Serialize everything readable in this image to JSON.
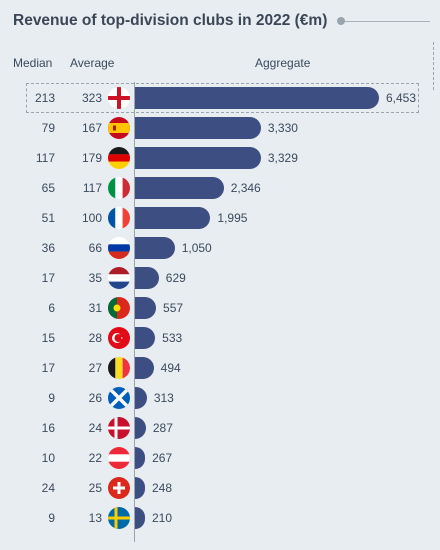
{
  "chart_data": {
    "type": "bar",
    "title": "Revenue of top-division clubs in 2022 (€m)",
    "columns": {
      "median": "Median",
      "average": "Average",
      "aggregate": "Aggregate"
    },
    "rows": [
      {
        "flag": "england",
        "median": "213",
        "average": "323",
        "aggregate": 6453,
        "aggregate_label": "6,453"
      },
      {
        "flag": "spain",
        "median": "79",
        "average": "167",
        "aggregate": 3330,
        "aggregate_label": "3,330"
      },
      {
        "flag": "germany",
        "median": "117",
        "average": "179",
        "aggregate": 3329,
        "aggregate_label": "3,329"
      },
      {
        "flag": "italy",
        "median": "65",
        "average": "117",
        "aggregate": 2346,
        "aggregate_label": "2,346"
      },
      {
        "flag": "france",
        "median": "51",
        "average": "100",
        "aggregate": 1995,
        "aggregate_label": "1,995"
      },
      {
        "flag": "russia",
        "median": "36",
        "average": "66",
        "aggregate": 1050,
        "aggregate_label": "1,050"
      },
      {
        "flag": "netherlands",
        "median": "17",
        "average": "35",
        "aggregate": 629,
        "aggregate_label": "629"
      },
      {
        "flag": "portugal",
        "median": "6",
        "average": "31",
        "aggregate": 557,
        "aggregate_label": "557"
      },
      {
        "flag": "turkey",
        "median": "15",
        "average": "28",
        "aggregate": 533,
        "aggregate_label": "533"
      },
      {
        "flag": "belgium",
        "median": "17",
        "average": "27",
        "aggregate": 494,
        "aggregate_label": "494"
      },
      {
        "flag": "scotland",
        "median": "9",
        "average": "26",
        "aggregate": 313,
        "aggregate_label": "313"
      },
      {
        "flag": "denmark",
        "median": "16",
        "average": "24",
        "aggregate": 287,
        "aggregate_label": "287"
      },
      {
        "flag": "austria",
        "median": "10",
        "average": "22",
        "aggregate": 267,
        "aggregate_label": "267"
      },
      {
        "flag": "switzerland",
        "median": "24",
        "average": "25",
        "aggregate": 248,
        "aggregate_label": "248"
      },
      {
        "flag": "sweden",
        "median": "9",
        "average": "13",
        "aggregate": 210,
        "aggregate_label": "210"
      }
    ],
    "bar_color": "#3d4f82"
  }
}
